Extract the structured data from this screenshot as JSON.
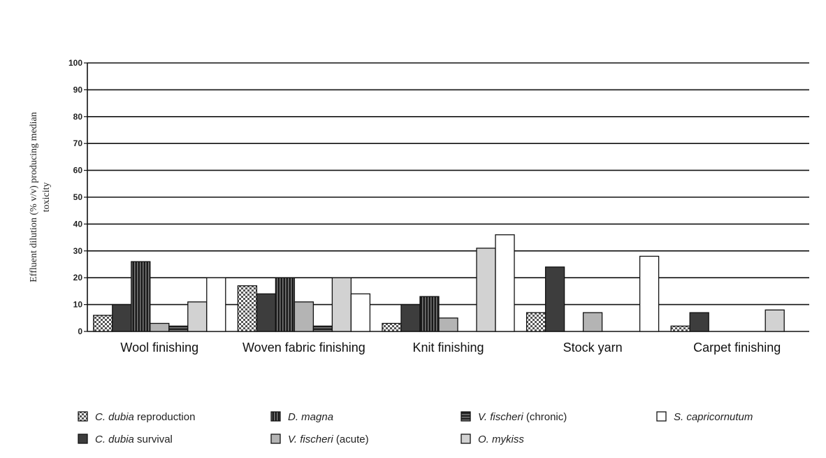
{
  "chart_data": {
    "type": "bar",
    "ylabel_line1": "Effluent dilution (% v/v) producing median",
    "ylabel_line2": "toxicity",
    "ylim": [
      0,
      100
    ],
    "yticks": [
      "0",
      "10",
      "20",
      "30",
      "40",
      "50",
      "60",
      "70",
      "80",
      "90",
      "100"
    ],
    "grid": true,
    "legend_position": "bottom",
    "categories": [
      "Wool finishing",
      "Woven fabric finishing",
      "Knit finishing",
      "Stock yarn",
      "Carpet finishing"
    ],
    "series": [
      {
        "name": "C. dubia reproduction",
        "italic": "C. dubia",
        "rest": " reproduction",
        "pattern": "checker",
        "values": [
          6,
          17,
          3,
          7,
          2
        ]
      },
      {
        "name": "C. dubia survival",
        "italic": "C. dubia",
        "rest": " survival",
        "pattern": "dark",
        "values": [
          10,
          14,
          10,
          24,
          7
        ]
      },
      {
        "name": "D. magna",
        "italic": "D. magna",
        "rest": "",
        "pattern": "vstripe",
        "values": [
          26,
          20,
          13,
          null,
          null
        ]
      },
      {
        "name": "V. fischeri (acute)",
        "italic": "V. fischeri",
        "rest": " (acute)",
        "pattern": "lightgray",
        "values": [
          3,
          11,
          5,
          7,
          null
        ]
      },
      {
        "name": "V. fischeri (chronic)",
        "italic": "V. fischeri",
        "rest": " (chronic)",
        "pattern": "hstripe",
        "values": [
          2,
          2,
          null,
          null,
          null
        ]
      },
      {
        "name": "O. mykiss",
        "italic": "O. mykiss",
        "rest": "",
        "pattern": "paleg",
        "values": [
          11,
          20,
          31,
          null,
          8
        ]
      },
      {
        "name": "S. capricornutum",
        "italic": "S. capricornutum",
        "rest": "",
        "pattern": "white",
        "values": [
          20,
          14,
          36,
          28,
          null
        ]
      }
    ],
    "legend_order": [
      0,
      2,
      4,
      6,
      1,
      3,
      5
    ]
  }
}
